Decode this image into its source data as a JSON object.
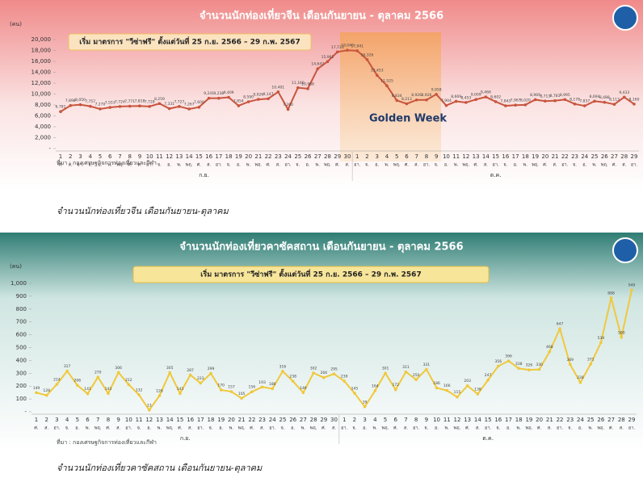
{
  "charts": [
    {
      "type": "line",
      "title": "จำนวนนักท่องเที่ยวจีน เดือนกันยายน - ตุลาคม 2566",
      "unit_label": "(คน)",
      "banner": "เริ่ม มาตรการ \"วีซ่าฟรี\" ตั้งแต่วันที่ 25 ก.ย. 2566 – 29 ก.พ. 2567",
      "annotation": "Golden Week",
      "source": "ที่มา : กองเศรษฐกิจการท่องเที่ยวและกีฬา",
      "caption": "จำนวนนักท่องเที่ยวจีน เดือนกันยายน-ตุลาคม",
      "month_labels": [
        "ก.ย.",
        "ต.ค."
      ],
      "categories": [
        "1",
        "2",
        "3",
        "4",
        "5",
        "6",
        "7",
        "8",
        "9",
        "10",
        "11",
        "12",
        "13",
        "14",
        "15",
        "16",
        "17",
        "18",
        "19",
        "20",
        "21",
        "22",
        "23",
        "24",
        "25",
        "26",
        "27",
        "28",
        "29",
        "30",
        "1",
        "2",
        "3",
        "4",
        "5",
        "6",
        "7",
        "8",
        "9",
        "10",
        "11",
        "12",
        "13",
        "14",
        "15",
        "16",
        "17",
        "18",
        "19",
        "20",
        "21",
        "22",
        "23",
        "24",
        "25",
        "26",
        "27",
        "28",
        "29"
      ],
      "weekdays": [
        "ศ.",
        "ส.",
        "อา.",
        "จ.",
        "อ.",
        "พ.",
        "พฤ.",
        "ศ.",
        "ส.",
        "อา.",
        "จ.",
        "อ.",
        "พ.",
        "พฤ.",
        "ศ.",
        "ส.",
        "อา.",
        "จ.",
        "อ.",
        "พ.",
        "พฤ.",
        "ศ.",
        "ส.",
        "อา.",
        "จ.",
        "อ.",
        "พ.",
        "พฤ.",
        "ศ.",
        "ส.",
        "อา.",
        "จ.",
        "อ.",
        "พ.",
        "พฤ.",
        "ศ.",
        "ส.",
        "อา.",
        "จ.",
        "อ.",
        "พ.",
        "พฤ.",
        "ศ.",
        "ส.",
        "อา.",
        "จ.",
        "อ.",
        "พ.",
        "พฤ.",
        "ศ.",
        "ส.",
        "อา.",
        "จ.",
        "อ.",
        "พ.",
        "พฤ.",
        "ศ.",
        "ส.",
        "อา."
      ],
      "ylim": [
        0,
        20000
      ],
      "yticks": [
        {
          "value": 0,
          "label": "-"
        },
        {
          "value": 2000,
          "label": "2,000"
        },
        {
          "value": 4000,
          "label": "4,000"
        },
        {
          "value": 6000,
          "label": "6,000"
        },
        {
          "value": 8000,
          "label": "8,000"
        },
        {
          "value": 10000,
          "label": "10,000"
        },
        {
          "value": 12000,
          "label": "12,000"
        },
        {
          "value": 14000,
          "label": "14,000"
        },
        {
          "value": 16000,
          "label": "16,000"
        },
        {
          "value": 18000,
          "label": "18,000"
        },
        {
          "value": 20000,
          "label": "20,000"
        }
      ],
      "series": [
        {
          "color": "#c8553d",
          "values": [
            6781,
            7898,
            8050,
            7757,
            7270,
            7553,
            7724,
            7771,
            7818,
            7728,
            8259,
            7331,
            7727,
            7267,
            7600,
            9241,
            9238,
            9409,
            7854,
            8590,
            9026,
            9147,
            10401,
            7200,
            11160,
            10988,
            14647,
            15961,
            17733,
            18040,
            17941,
            16326,
            13453,
            11525,
            8834,
            8213,
            8926,
            8926,
            9958,
            7904,
            8669,
            8453,
            9009,
            9466,
            8602,
            7843,
            7967,
            8020,
            8969,
            8713,
            8781,
            8995,
            8178,
            7837,
            8694,
            8488,
            8113,
            9433,
            8160
          ],
          "value_labels": [
            "6,781",
            "7,898",
            "8,050",
            "7,757",
            "7,270",
            "7,553",
            "7,724",
            "7,771",
            "7,818",
            "7,728",
            "8,259",
            "7,331",
            "7,727",
            "7,267",
            "7,600",
            "9,241",
            "9,238",
            "9,409",
            "7,854",
            "8,590",
            "9,026",
            "9,147",
            "10,401",
            "7,200",
            "11,160",
            "10,988",
            "14,647",
            "15,961",
            "17,733",
            "18,040",
            "17,941",
            "16,326",
            "13,453",
            "11,525",
            "8,834",
            "8,213",
            "8,926",
            "8,926",
            "9,958",
            "7,904",
            "8,669",
            "8,453",
            "9,009",
            "9,466",
            "8,602",
            "7,843",
            "7,967",
            "8,020",
            "8,969",
            "8,713",
            "8,781",
            "8,995",
            "8,178",
            "7,837",
            "8,694",
            "8,488",
            "8,113",
            "9,433",
            "8,160"
          ]
        }
      ]
    },
    {
      "type": "line",
      "title": "จำนวนนักท่องเที่ยวคาซัคสถาน เดือนกันยายน - ตุลาคม 2566",
      "unit_label": "(คน)",
      "banner": "เริ่ม มาตรการ \"วีซ่าฟรี\" ตั้งแต่วันที่ 25 ก.ย. 2566 – 29 ก.พ. 2567",
      "source": "ที่มา : กองเศรษฐกิจการท่องเที่ยวและกีฬา",
      "caption": "จำนวนนักท่องเที่ยวคาซัคสถาน เดือนกันยายน-ตุลาคม",
      "month_labels": [
        "ก.ย.",
        "ต.ค."
      ],
      "categories": [
        "1",
        "2",
        "3",
        "4",
        "5",
        "6",
        "7",
        "8",
        "9",
        "10",
        "11",
        "12",
        "13",
        "14",
        "15",
        "16",
        "17",
        "18",
        "19",
        "20",
        "21",
        "22",
        "23",
        "24",
        "25",
        "26",
        "27",
        "28",
        "29",
        "30",
        "1",
        "2",
        "3",
        "4",
        "5",
        "6",
        "7",
        "8",
        "9",
        "10",
        "11",
        "12",
        "13",
        "14",
        "15",
        "16",
        "17",
        "18",
        "19",
        "20",
        "21",
        "22",
        "23",
        "24",
        "25",
        "26",
        "27",
        "28",
        "29"
      ],
      "weekdays": [
        "ศ.",
        "ส.",
        "อา.",
        "จ.",
        "อ.",
        "พ.",
        "พฤ.",
        "ศ.",
        "ส.",
        "อา.",
        "จ.",
        "อ.",
        "พ.",
        "พฤ.",
        "ศ.",
        "ส.",
        "อา.",
        "จ.",
        "อ.",
        "พ.",
        "พฤ.",
        "ศ.",
        "ส.",
        "อา.",
        "จ.",
        "อ.",
        "พ.",
        "พฤ.",
        "ศ.",
        "ส.",
        "อา.",
        "จ.",
        "อ.",
        "พ.",
        "พฤ.",
        "ศ.",
        "ส.",
        "อา.",
        "จ.",
        "อ.",
        "พ.",
        "พฤ.",
        "ศ.",
        "ส.",
        "อา.",
        "จ.",
        "อ.",
        "พ.",
        "พฤ.",
        "ศ.",
        "ส.",
        "อา.",
        "จ.",
        "อ.",
        "พ.",
        "พฤ.",
        "ศ.",
        "ส.",
        "อา."
      ],
      "ylim": [
        0,
        1000
      ],
      "yticks": [
        {
          "value": 0,
          "label": "-"
        },
        100,
        200,
        300,
        400,
        500,
        600,
        700,
        800,
        900,
        {
          "value": 1000,
          "label": "1,000"
        }
      ],
      "series": [
        {
          "color": "#f0c83c",
          "values": [
            149,
            128,
            214,
            317,
            206,
            141,
            270,
            143,
            306,
            212,
            132,
            13,
            126,
            305,
            143,
            287,
            223,
            299,
            170,
            157,
            105,
            156,
            193,
            180,
            316,
            238,
            149,
            302,
            266,
            295,
            239,
            145,
            39,
            164,
            301,
            172,
            311,
            250,
            331,
            186,
            166,
            115,
            203,
            138,
            247,
            356,
            396,
            338,
            326,
            330,
            468,
            647,
            369,
            228,
            371,
            539,
            888,
            580,
            949
          ]
        }
      ]
    }
  ]
}
